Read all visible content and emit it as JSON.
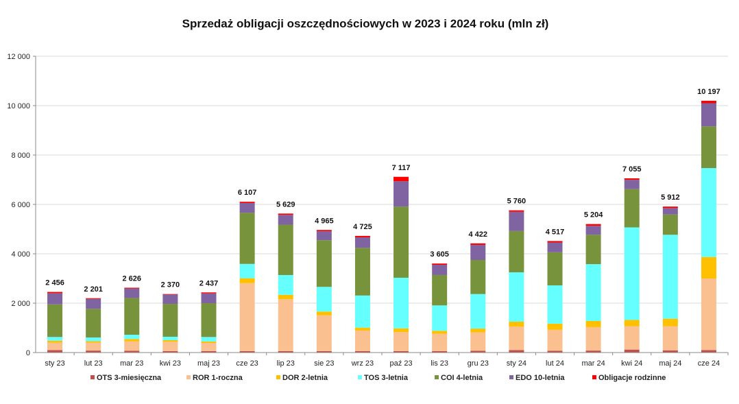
{
  "chart_data": {
    "type": "bar",
    "stacked": true,
    "title": "Sprzedaż obligacji oszczędnościowych w 2023 i 2024 roku (mln zł)",
    "xlabel": "",
    "ylabel": "",
    "ylim": [
      0,
      12000
    ],
    "yticks": [
      0,
      2000,
      4000,
      6000,
      8000,
      10000,
      12000
    ],
    "ytick_labels": [
      "0",
      "2 000",
      "4 000",
      "6 000",
      "8 000",
      "10 000",
      "12 000"
    ],
    "categories": [
      "sty 23",
      "lut 23",
      "mar 23",
      "kwi 23",
      "maj 23",
      "cze 23",
      "lip 23",
      "sie 23",
      "wrz 23",
      "paź 23",
      "lis 23",
      "gru 23",
      "sty 24",
      "lut 24",
      "mar 24",
      "kwi 24",
      "maj 24",
      "cze 24"
    ],
    "totals": [
      2456,
      2201,
      2626,
      2370,
      2437,
      6107,
      5629,
      4965,
      4725,
      7117,
      3605,
      4422,
      5760,
      4517,
      5204,
      7055,
      5912,
      10197
    ],
    "total_labels": [
      "2 456",
      "2 201",
      "2 626",
      "2 370",
      "2 437",
      "6 107",
      "5 629",
      "4 965",
      "4 725",
      "7 117",
      "3 605",
      "4 422",
      "5 760",
      "4 517",
      "5 204",
      "7 055",
      "5 912",
      "10 197"
    ],
    "series": [
      {
        "name": "OTS 3-miesięczna",
        "color": "#c0504d",
        "values": [
          100,
          80,
          70,
          60,
          60,
          60,
          60,
          60,
          60,
          60,
          60,
          70,
          100,
          70,
          80,
          120,
          90,
          100
        ]
      },
      {
        "name": "ROR 1-roczna",
        "color": "#fac090",
        "values": [
          300,
          320,
          380,
          380,
          330,
          2750,
          2100,
          1450,
          830,
          770,
          700,
          750,
          950,
          850,
          950,
          950,
          980,
          2900
        ]
      },
      {
        "name": "DOR 2-letnia",
        "color": "#ffc000",
        "values": [
          80,
          60,
          100,
          60,
          60,
          200,
          180,
          150,
          120,
          150,
          120,
          150,
          200,
          250,
          250,
          250,
          300,
          870
        ]
      },
      {
        "name": "TOS 3-letnia",
        "color": "#66ffff",
        "values": [
          150,
          150,
          170,
          140,
          180,
          580,
          800,
          1000,
          1300,
          2050,
          1030,
          1400,
          2000,
          1550,
          2300,
          3750,
          3400,
          3600
        ]
      },
      {
        "name": "COI 4-letnia",
        "color": "#77933c",
        "values": [
          1320,
          1160,
          1490,
          1330,
          1370,
          2070,
          2040,
          1890,
          1930,
          2880,
          1230,
          1380,
          1670,
          1340,
          1190,
          1550,
          820,
          1690
        ]
      },
      {
        "name": "EDO 10-letnia",
        "color": "#8064a2",
        "values": [
          456,
          401,
          386,
          380,
          397,
          397,
          399,
          365,
          425,
          1027,
          415,
          612,
          780,
          397,
          364,
          375,
          262,
          937
        ]
      },
      {
        "name": "Obligacje rodzinne",
        "color": "#ff0000",
        "values": [
          50,
          30,
          30,
          20,
          40,
          50,
          50,
          50,
          60,
          180,
          50,
          60,
          60,
          60,
          70,
          60,
          60,
          100
        ]
      }
    ],
    "grid": true,
    "legend_position": "bottom"
  }
}
